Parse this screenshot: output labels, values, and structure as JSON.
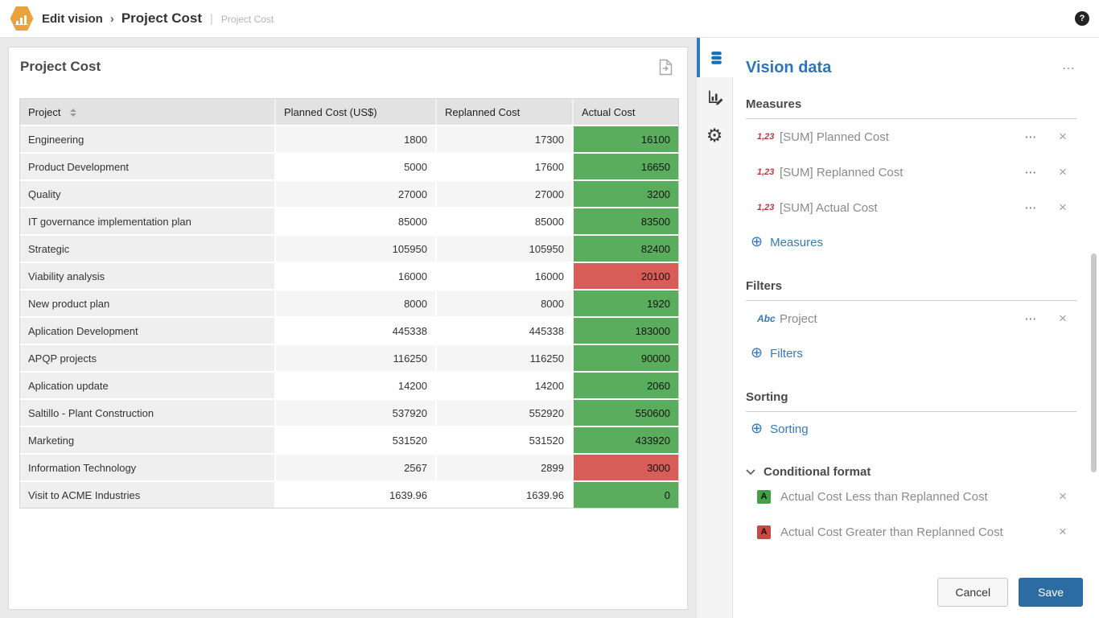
{
  "topbar": {
    "breadcrumb": {
      "root": "Edit vision",
      "separator": "›",
      "current": "Project Cost",
      "divider": "|",
      "subtitle": "Project Cost"
    },
    "help_label": "?"
  },
  "card": {
    "title": "Project Cost"
  },
  "table": {
    "columns": [
      "Project",
      "Planned Cost (US$)",
      "Replanned Cost",
      "Actual Cost"
    ],
    "rows": [
      {
        "project": "Engineering",
        "planned": "1800",
        "replanned": "17300",
        "actual": "16100",
        "status": "green"
      },
      {
        "project": "Product Development",
        "planned": "5000",
        "replanned": "17600",
        "actual": "16650",
        "status": "green"
      },
      {
        "project": "Quality",
        "planned": "27000",
        "replanned": "27000",
        "actual": "3200",
        "status": "green"
      },
      {
        "project": "IT governance implementation plan",
        "planned": "85000",
        "replanned": "85000",
        "actual": "83500",
        "status": "green"
      },
      {
        "project": "Strategic",
        "planned": "105950",
        "replanned": "105950",
        "actual": "82400",
        "status": "green"
      },
      {
        "project": "Viability analysis",
        "planned": "16000",
        "replanned": "16000",
        "actual": "20100",
        "status": "red"
      },
      {
        "project": "New product plan",
        "planned": "8000",
        "replanned": "8000",
        "actual": "1920",
        "status": "green"
      },
      {
        "project": "Aplication Development",
        "planned": "445338",
        "replanned": "445338",
        "actual": "183000",
        "status": "green"
      },
      {
        "project": "APQP projects",
        "planned": "116250",
        "replanned": "116250",
        "actual": "90000",
        "status": "green"
      },
      {
        "project": "Aplication update",
        "planned": "14200",
        "replanned": "14200",
        "actual": "2060",
        "status": "green"
      },
      {
        "project": "Saltillo - Plant Construction",
        "planned": "537920",
        "replanned": "552920",
        "actual": "550600",
        "status": "green"
      },
      {
        "project": "Marketing",
        "planned": "531520",
        "replanned": "531520",
        "actual": "433920",
        "status": "green"
      },
      {
        "project": "Information Technology",
        "planned": "2567",
        "replanned": "2899",
        "actual": "3000",
        "status": "red"
      },
      {
        "project": "Visit to ACME Industries",
        "planned": "1639.96",
        "replanned": "1639.96",
        "actual": "0",
        "status": "green"
      }
    ]
  },
  "panel": {
    "title": "Vision data",
    "menu_label": "⋯",
    "item_menu_label": "⋯",
    "item_close_label": "×",
    "add_icon": "⊕",
    "measures": {
      "title": "Measures",
      "items": [
        {
          "icon": "1,23",
          "label": "[SUM] Planned Cost"
        },
        {
          "icon": "1,23",
          "label": "[SUM] Replanned Cost"
        },
        {
          "icon": "1,23",
          "label": "[SUM] Actual Cost"
        }
      ],
      "add_label": "Measures"
    },
    "filters": {
      "title": "Filters",
      "items": [
        {
          "icon": "Abc",
          "label": "Project"
        }
      ],
      "add_label": "Filters"
    },
    "sorting": {
      "title": "Sorting",
      "add_label": "Sorting"
    },
    "conditional_format": {
      "title": "Conditional format",
      "items": [
        {
          "badge": "A",
          "color": "#43a047",
          "label": "Actual Cost Less than Replanned Cost"
        },
        {
          "badge": "A",
          "color": "#cc4743",
          "label": "Actual Cost Greater than Replanned Cost"
        }
      ]
    },
    "footer": {
      "cancel_label": "Cancel",
      "save_label": "Save"
    }
  },
  "colors": {
    "green_cell": "#5aad5c",
    "red_cell": "#d85c57",
    "accent_blue": "#2e75b6",
    "link_blue": "#337ab7",
    "save_blue": "#2d6ca2",
    "logo_orange": "#e9a23d",
    "db_icon_blue": "#1a6fba",
    "numeric_icon_red": "#b23b3f"
  }
}
